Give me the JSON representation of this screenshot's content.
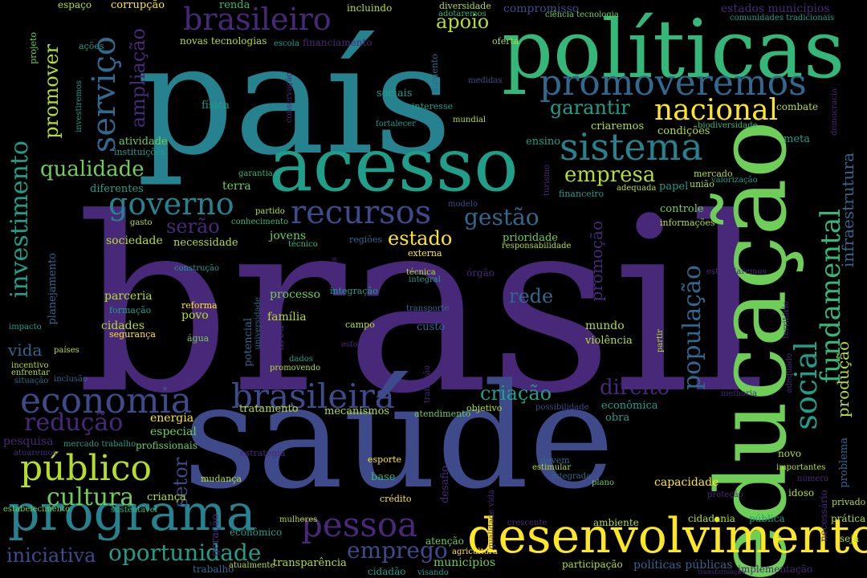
{
  "palette": {
    "background": "#000000",
    "dark_purple": "#440154",
    "purple": "#482878",
    "indigo": "#3e4a89",
    "blue": "#31688e",
    "teal": "#26828e",
    "sea_green": "#1f9e89",
    "green": "#35b779",
    "lime": "#6ece58",
    "yellow_green": "#b5de2b",
    "yellow": "#fde725"
  },
  "words": [
    "brasil",
    "saúde",
    "país",
    "políticas",
    "educação",
    "acesso",
    "desenvolvimento",
    "programa",
    "promoveremos",
    "sistema",
    "social",
    "fundamental",
    "brasileira",
    "economia",
    "público",
    "pessoa",
    "nacional",
    "população",
    "recursos",
    "governo",
    "brasileiro",
    "serviço",
    "investimento",
    "qualidade",
    "infraestrutura",
    "produção",
    "oportunidade",
    "cultura",
    "redução",
    "emprego",
    "iniciativa",
    "gestão",
    "estado",
    "direito",
    "criação",
    "empresa",
    "garantir",
    "apoio",
    "promover",
    "ampliação",
    "rede",
    "promoção",
    "vida",
    "setor",
    "serão",
    "capacidade",
    "municípios",
    "transparência",
    "jovens",
    "sociedade",
    "necessidade",
    "parceria",
    "processo",
    "família",
    "mundo",
    "violência",
    "cidades",
    "povo",
    "energia",
    "especial",
    "tratamento",
    "mecanismos",
    "atendimento",
    "objetivo",
    "econômica",
    "obra",
    "criança",
    "mudança",
    "crédito",
    "base",
    "desafio",
    "esporte",
    "estratégia",
    "custo",
    "campo",
    "água",
    "segurança",
    "reforma",
    "formação",
    "externa",
    "prioridade",
    "controle",
    "informações",
    "papel",
    "união",
    "financeiro",
    "adequada",
    "valorização",
    "mercado",
    "terra",
    "diferentes",
    "garantia",
    "partido",
    "conhecimento",
    "gasto",
    "atividade",
    "instituições",
    "física",
    "renda",
    "corrupção",
    "espaço",
    "projeto",
    "ações",
    "novas tecnologias",
    "escola",
    "financiamento",
    "oferta",
    "diversidade",
    "adotaremos",
    "compromisso",
    "ciência tecnologia",
    "estados municípios",
    "comunidades tradicionais",
    "incluindo",
    "sociais",
    "aumento",
    "interesse",
    "mundial",
    "medidas",
    "conservação",
    "fortalecer",
    "ensino",
    "criaremos",
    "condições",
    "biodiversidade",
    "meta",
    "combate",
    "democracia",
    "investiremos",
    "turismo",
    "modelo",
    "regiões",
    "técnico",
    "formas",
    "integração",
    "técnica",
    "integral",
    "órgão",
    "responsabilidade",
    "possibilidade",
    "construção",
    "planejamento",
    "impacto",
    "países",
    "incentivo",
    "enfrentar",
    "situação",
    "inclusão",
    "pesquisa",
    "mercado trabalho",
    "profissionais",
    "atuaremos",
    "estabelecimento",
    "sustentável",
    "mulheres",
    "econômico",
    "trabalho",
    "atualmente",
    "cidadão",
    "visando",
    "agricultura",
    "atenção",
    "crescente",
    "ambiente",
    "participação",
    "políticas públicas",
    "transformação",
    "implementação",
    "cidadania",
    "pública",
    "idoso",
    "necessário",
    "prática",
    "seja",
    "privado",
    "proteção",
    "número",
    "importantes",
    "problema",
    "novo",
    "adequado",
    "melhoria",
    "partir",
    "território",
    "estimularemos",
    "transição",
    "dados",
    "promovendo",
    "área",
    "potencial",
    "universidade",
    "esforço",
    "transporte",
    "plano",
    "devem",
    "estimular",
    "integrada",
    "qualidade vida",
    "geração"
  ]
}
